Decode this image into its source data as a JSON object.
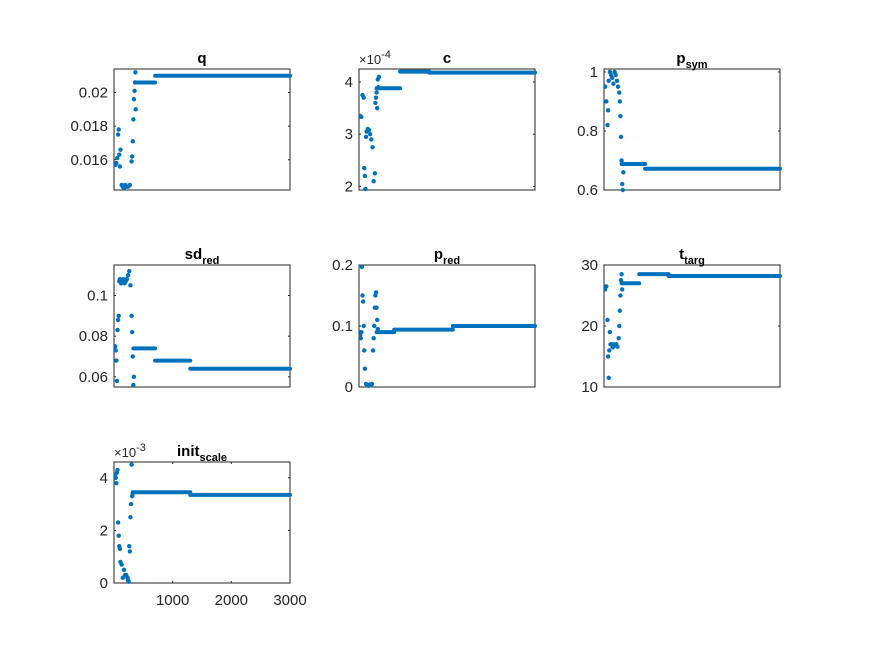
{
  "figure": {
    "background": "#ffffff",
    "marker_color": "#0072bd",
    "axis_color": "#262626"
  },
  "chart_data": [
    {
      "type": "scatter",
      "title": "q",
      "title_sub": "",
      "xlim": [
        0,
        3000
      ],
      "ylim": [
        0.0142,
        0.0214
      ],
      "xticks": [],
      "yticks": [
        0.016,
        0.018,
        0.02
      ],
      "yticklabels": [
        "0.016",
        "0.018",
        "0.02"
      ],
      "exponent": "",
      "series": [
        {
          "name": "",
          "scatter_points": [
            [
              25,
              0.0157
            ],
            [
              40,
              0.0158
            ],
            [
              55,
              0.0161
            ],
            [
              70,
              0.0175
            ],
            [
              80,
              0.0178
            ],
            [
              90,
              0.0163
            ],
            [
              100,
              0.0156
            ],
            [
              110,
              0.0166
            ],
            [
              130,
              0.0145
            ],
            [
              150,
              0.0144
            ],
            [
              170,
              0.0143
            ],
            [
              190,
              0.0145
            ],
            [
              210,
              0.0144
            ],
            [
              240,
              0.0144
            ],
            [
              270,
              0.0145
            ],
            [
              300,
              0.0159
            ],
            [
              310,
              0.0162
            ],
            [
              320,
              0.0171
            ],
            [
              330,
              0.0184
            ],
            [
              340,
              0.0196
            ],
            [
              350,
              0.0201
            ],
            [
              360,
              0.0206
            ],
            [
              365,
              0.0212
            ],
            [
              370,
              0.019
            ]
          ],
          "segments": [
            [
              360,
              700,
              0.0206
            ],
            [
              700,
              3000,
              0.021
            ]
          ]
        }
      ]
    },
    {
      "type": "scatter",
      "title": "c",
      "title_sub": "",
      "xlim": [
        0,
        3000
      ],
      "ylim": [
        1.93,
        4.25
      ],
      "xticks": [],
      "yticks": [
        2,
        3,
        4
      ],
      "yticklabels": [
        "2",
        "3",
        "4"
      ],
      "exponent": "-4",
      "series": [
        {
          "name": "",
          "scatter_points": [
            [
              20,
              3.35
            ],
            [
              40,
              3.33
            ],
            [
              60,
              3.75
            ],
            [
              80,
              3.7
            ],
            [
              90,
              2.35
            ],
            [
              100,
              2.2
            ],
            [
              110,
              1.95
            ],
            [
              120,
              2.95
            ],
            [
              130,
              3.05
            ],
            [
              150,
              3.1
            ],
            [
              170,
              3.08
            ],
            [
              190,
              3.0
            ],
            [
              210,
              2.9
            ],
            [
              230,
              2.75
            ],
            [
              250,
              2.1
            ],
            [
              270,
              2.25
            ],
            [
              280,
              3.6
            ],
            [
              290,
              3.7
            ],
            [
              300,
              3.8
            ],
            [
              310,
              3.5
            ],
            [
              320,
              4.05
            ],
            [
              330,
              3.9
            ],
            [
              340,
              4.1
            ]
          ],
          "segments": [
            [
              300,
              700,
              3.88
            ],
            [
              700,
              1200,
              4.2
            ],
            [
              1200,
              3000,
              4.18
            ]
          ]
        }
      ]
    },
    {
      "type": "scatter",
      "title": "p",
      "title_sub": "sym",
      "xlim": [
        0,
        3000
      ],
      "ylim": [
        0.6,
        1.01
      ],
      "xticks": [],
      "yticks": [
        0.6,
        0.8,
        1.0
      ],
      "yticklabels": [
        "0.6",
        "0.8",
        "1"
      ],
      "exponent": "",
      "series": [
        {
          "name": "",
          "scatter_points": [
            [
              20,
              0.95
            ],
            [
              40,
              0.9
            ],
            [
              60,
              0.82
            ],
            [
              70,
              0.87
            ],
            [
              80,
              0.97
            ],
            [
              100,
              1.0
            ],
            [
              120,
              0.99
            ],
            [
              140,
              0.98
            ],
            [
              160,
              0.96
            ],
            [
              180,
              1.0
            ],
            [
              200,
              0.99
            ],
            [
              220,
              0.97
            ],
            [
              240,
              0.95
            ],
            [
              260,
              0.93
            ],
            [
              270,
              0.9
            ],
            [
              280,
              0.85
            ],
            [
              290,
              0.78
            ],
            [
              300,
              0.7
            ],
            [
              310,
              0.62
            ],
            [
              320,
              0.6
            ],
            [
              330,
              0.66
            ]
          ],
          "segments": [
            [
              300,
              700,
              0.688
            ],
            [
              700,
              3000,
              0.672
            ]
          ]
        }
      ]
    },
    {
      "type": "scatter",
      "title": "sd",
      "title_sub": "red",
      "xlim": [
        0,
        3000
      ],
      "ylim": [
        0.055,
        0.115
      ],
      "xticks": [],
      "yticks": [
        0.06,
        0.08,
        0.1
      ],
      "yticklabels": [
        "0.06",
        "0.08",
        "0.1"
      ],
      "exponent": "",
      "series": [
        {
          "name": "",
          "scatter_points": [
            [
              20,
              0.075
            ],
            [
              30,
              0.073
            ],
            [
              40,
              0.068
            ],
            [
              50,
              0.058
            ],
            [
              60,
              0.083
            ],
            [
              70,
              0.088
            ],
            [
              80,
              0.09
            ],
            [
              90,
              0.107
            ],
            [
              100,
              0.108
            ],
            [
              120,
              0.106
            ],
            [
              140,
              0.107
            ],
            [
              160,
              0.108
            ],
            [
              180,
              0.106
            ],
            [
              200,
              0.107
            ],
            [
              220,
              0.108
            ],
            [
              240,
              0.11
            ],
            [
              260,
              0.112
            ],
            [
              280,
              0.105
            ],
            [
              300,
              0.09
            ],
            [
              310,
              0.082
            ],
            [
              320,
              0.07
            ],
            [
              330,
              0.056
            ],
            [
              340,
              0.06
            ]
          ],
          "segments": [
            [
              330,
              700,
              0.074
            ],
            [
              700,
              1300,
              0.068
            ],
            [
              1300,
              3000,
              0.064
            ]
          ]
        }
      ]
    },
    {
      "type": "scatter",
      "title": "p",
      "title_sub": "red",
      "xlim": [
        0,
        3000
      ],
      "ylim": [
        0,
        0.2
      ],
      "xticks": [],
      "yticks": [
        0,
        0.1,
        0.2
      ],
      "yticklabels": [
        "0",
        "0.1",
        "0.2"
      ],
      "exponent": "",
      "series": [
        {
          "name": "",
          "scatter_points": [
            [
              20,
              0.085
            ],
            [
              30,
              0.08
            ],
            [
              40,
              0.09
            ],
            [
              50,
              0.197
            ],
            [
              60,
              0.15
            ],
            [
              70,
              0.14
            ],
            [
              80,
              0.1
            ],
            [
              90,
              0.06
            ],
            [
              100,
              0.03
            ],
            [
              120,
              0.005
            ],
            [
              140,
              0.003
            ],
            [
              160,
              0.002
            ],
            [
              180,
              0.004
            ],
            [
              200,
              0.003
            ],
            [
              220,
              0.005
            ],
            [
              240,
              0.06
            ],
            [
              250,
              0.08
            ],
            [
              260,
              0.1
            ],
            [
              270,
              0.13
            ],
            [
              280,
              0.15
            ],
            [
              290,
              0.155
            ],
            [
              300,
              0.13
            ],
            [
              310,
              0.11
            ],
            [
              320,
              0.095
            ]
          ],
          "segments": [
            [
              300,
              600,
              0.09
            ],
            [
              600,
              1600,
              0.094
            ],
            [
              1600,
              3000,
              0.1
            ]
          ]
        }
      ]
    },
    {
      "type": "scatter",
      "title": "t",
      "title_sub": "targ",
      "xlim": [
        0,
        3000
      ],
      "ylim": [
        10,
        30
      ],
      "xticks": [],
      "yticks": [
        10,
        20,
        30
      ],
      "yticklabels": [
        "10",
        "20",
        "30"
      ],
      "exponent": "",
      "series": [
        {
          "name": "",
          "scatter_points": [
            [
              20,
              26.0
            ],
            [
              40,
              26.5
            ],
            [
              60,
              21.0
            ],
            [
              70,
              15.0
            ],
            [
              80,
              11.5
            ],
            [
              90,
              16.0
            ],
            [
              100,
              19.0
            ],
            [
              110,
              17.0
            ],
            [
              130,
              17.0
            ],
            [
              150,
              16.5
            ],
            [
              170,
              17.0
            ],
            [
              190,
              16.8
            ],
            [
              210,
              17.0
            ],
            [
              230,
              16.6
            ],
            [
              250,
              18.0
            ],
            [
              260,
              20.0
            ],
            [
              270,
              22.5
            ],
            [
              280,
              25.0
            ],
            [
              290,
              27.5
            ],
            [
              300,
              28.5
            ],
            [
              310,
              26.0
            ]
          ],
          "segments": [
            [
              300,
              600,
              27.0
            ],
            [
              600,
              1100,
              28.5
            ],
            [
              1100,
              3000,
              28.2
            ]
          ]
        }
      ]
    },
    {
      "type": "scatter",
      "title": "init",
      "title_sub": "scale",
      "xlim": [
        0,
        3000
      ],
      "ylim": [
        0,
        4.6
      ],
      "xticks": [
        1000,
        2000,
        3000
      ],
      "xticklabels": [
        "1000",
        "2000",
        "3000"
      ],
      "yticks": [
        0,
        2,
        4
      ],
      "yticklabels": [
        "0",
        "2",
        "4"
      ],
      "exponent": "-3",
      "series": [
        {
          "name": "",
          "scatter_points": [
            [
              20,
              4.1
            ],
            [
              30,
              4.0
            ],
            [
              40,
              3.8
            ],
            [
              50,
              4.2
            ],
            [
              60,
              4.3
            ],
            [
              70,
              2.3
            ],
            [
              80,
              1.8
            ],
            [
              90,
              1.4
            ],
            [
              100,
              1.3
            ],
            [
              110,
              0.8
            ],
            [
              130,
              0.7
            ],
            [
              150,
              0.2
            ],
            [
              170,
              0.5
            ],
            [
              190,
              0.3
            ],
            [
              210,
              0.3
            ],
            [
              230,
              0.2
            ],
            [
              240,
              0.1
            ],
            [
              250,
              0.05
            ],
            [
              260,
              1.4
            ],
            [
              270,
              1.2
            ],
            [
              280,
              2.5
            ],
            [
              290,
              3.0
            ],
            [
              300,
              4.5
            ],
            [
              310,
              3.3
            ],
            [
              320,
              3.4
            ]
          ],
          "segments": [
            [
              320,
              1300,
              3.45
            ],
            [
              1300,
              3000,
              3.35
            ]
          ]
        }
      ]
    }
  ]
}
